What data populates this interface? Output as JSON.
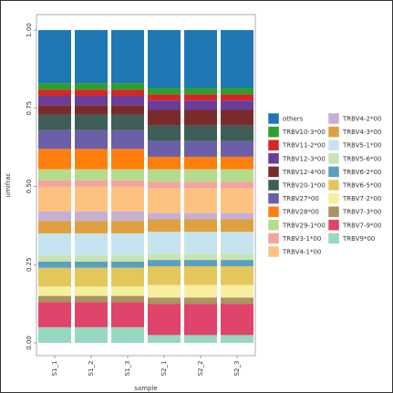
{
  "chart_data": {
    "type": "stacked-bar",
    "x_label": "sample",
    "y_label": "umifrac",
    "categories": [
      "S1_1",
      "S1_2",
      "S1_3",
      "S2_1",
      "S2_2",
      "S2_3"
    ],
    "ylim": [
      0,
      1
    ],
    "yticks": [
      {
        "value": 0,
        "label": "0.00"
      },
      {
        "value": 0.25,
        "label": "0.25"
      },
      {
        "value": 0.5,
        "label": "0.50"
      },
      {
        "value": 0.75,
        "label": "0.75"
      },
      {
        "value": 1,
        "label": "1.00"
      }
    ],
    "series": [
      {
        "name": "others",
        "color": "#1f77b4",
        "values": [
          0.17,
          0.17,
          0.17,
          0.185,
          0.185,
          0.185
        ]
      },
      {
        "name": "TRBV10-3*00",
        "color": "#2ca02c",
        "values": [
          0.02,
          0.02,
          0.02,
          0.02,
          0.02,
          0.02
        ]
      },
      {
        "name": "TRBV11-2*00",
        "color": "#d62728",
        "values": [
          0.02,
          0.02,
          0.02,
          0.02,
          0.02,
          0.02
        ]
      },
      {
        "name": "TRBV12-3*00",
        "color": "#6a3d9a",
        "values": [
          0.03,
          0.03,
          0.03,
          0.03,
          0.03,
          0.03
        ]
      },
      {
        "name": "TRBV12-4*00",
        "color": "#7b2a2a",
        "values": [
          0.03,
          0.03,
          0.03,
          0.05,
          0.05,
          0.05
        ]
      },
      {
        "name": "TRBV20-1*00",
        "color": "#3d5f58",
        "values": [
          0.05,
          0.05,
          0.05,
          0.05,
          0.05,
          0.05
        ]
      },
      {
        "name": "TRBV27*00",
        "color": "#6b5fa8",
        "values": [
          0.06,
          0.06,
          0.06,
          0.05,
          0.05,
          0.05
        ]
      },
      {
        "name": "TRBV28*00",
        "color": "#ff7f0e",
        "values": [
          0.065,
          0.065,
          0.065,
          0.04,
          0.04,
          0.04
        ]
      },
      {
        "name": "TRBV29-1*00",
        "color": "#b5dc8c",
        "values": [
          0.035,
          0.035,
          0.035,
          0.04,
          0.04,
          0.04
        ]
      },
      {
        "name": "TRBV3-1*00",
        "color": "#f4a3a0",
        "values": [
          0.02,
          0.02,
          0.02,
          0.02,
          0.02,
          0.02
        ]
      },
      {
        "name": "TRBV4-1*00",
        "color": "#fdc27f",
        "values": [
          0.08,
          0.08,
          0.08,
          0.08,
          0.08,
          0.08
        ]
      },
      {
        "name": "TRBV4-2*00",
        "color": "#c5b0d5",
        "values": [
          0.03,
          0.03,
          0.03,
          0.02,
          0.02,
          0.02
        ]
      },
      {
        "name": "TRBV4-3*00",
        "color": "#e0a040",
        "values": [
          0.04,
          0.04,
          0.04,
          0.04,
          0.04,
          0.04
        ]
      },
      {
        "name": "TRBV5-1*00",
        "color": "#c6e4ef",
        "values": [
          0.07,
          0.07,
          0.07,
          0.07,
          0.07,
          0.07
        ]
      },
      {
        "name": "TRBV5-6*00",
        "color": "#c7e3b0",
        "values": [
          0.02,
          0.02,
          0.02,
          0.02,
          0.02,
          0.02
        ]
      },
      {
        "name": "TRBV6-2*00",
        "color": "#5aa0c0",
        "values": [
          0.02,
          0.02,
          0.02,
          0.02,
          0.02,
          0.02
        ]
      },
      {
        "name": "TRBV6-5*00",
        "color": "#e3c75a",
        "values": [
          0.06,
          0.06,
          0.06,
          0.06,
          0.06,
          0.06
        ]
      },
      {
        "name": "TRBV7-2*00",
        "color": "#f7ef9e",
        "values": [
          0.03,
          0.03,
          0.03,
          0.04,
          0.04,
          0.04
        ]
      },
      {
        "name": "TRBV7-3*00",
        "color": "#a89560",
        "values": [
          0.02,
          0.02,
          0.02,
          0.02,
          0.02,
          0.02
        ]
      },
      {
        "name": "TRBV7-9*00",
        "color": "#e0446a",
        "values": [
          0.08,
          0.08,
          0.08,
          0.1,
          0.1,
          0.1
        ]
      },
      {
        "name": "TRBV9*00",
        "color": "#98d8c0",
        "values": [
          0.05,
          0.05,
          0.05,
          0.025,
          0.025,
          0.025
        ]
      }
    ]
  }
}
